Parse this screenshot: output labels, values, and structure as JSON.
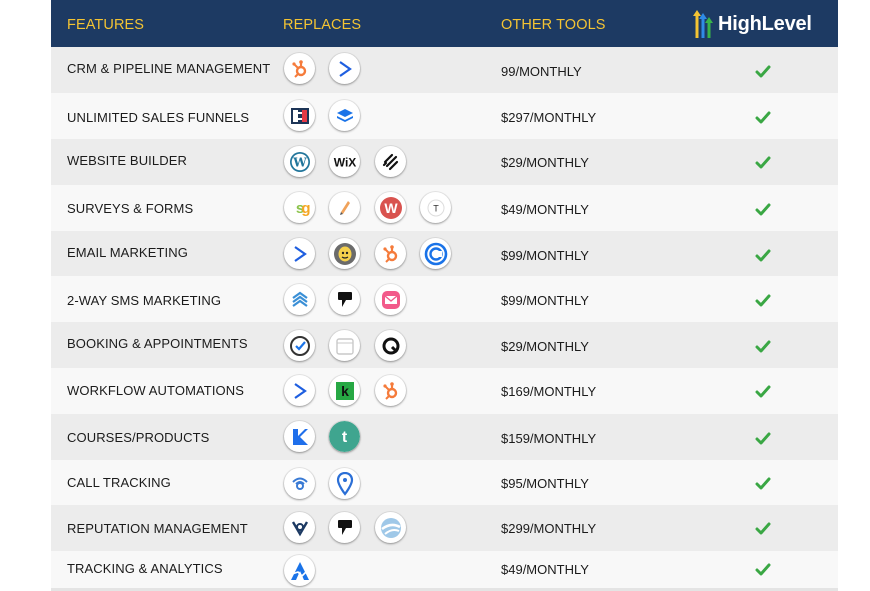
{
  "header": {
    "col_features": "FEATURES",
    "col_replaces": "REPLACES",
    "col_other_tools": "OTHER TOOLS",
    "brand": "HighLevel",
    "brand_icon": "highlevel-arrows-logo"
  },
  "colors": {
    "header_bg": "#1d3a63",
    "header_text": "#f4c433",
    "check": "#3aa744",
    "row_shaded": "#ececec",
    "row_light": "#f8f8f8"
  },
  "rows": [
    {
      "feature": "CRM & PIPELINE MANAGEMENT",
      "price": "99/MONTHLY",
      "icons": [
        "hubspot-icon",
        "activecampaign-icon"
      ]
    },
    {
      "feature": "UNLIMITED SALES FUNNELS",
      "price": "$297/MONTHLY",
      "icons": [
        "clickfunnels-icon",
        "leadpages-icon"
      ]
    },
    {
      "feature": "WEBSITE BUILDER",
      "price": "$29/MONTHLY",
      "icons": [
        "wordpress-icon",
        "wix-icon",
        "squarespace-icon"
      ]
    },
    {
      "feature": "SURVEYS & FORMS",
      "price": "$49/MONTHLY",
      "icons": [
        "surveygizmo-icon",
        "survey-pen-icon",
        "wufoo-icon",
        "typeform-icon"
      ]
    },
    {
      "feature": "EMAIL MARKETING",
      "price": "$99/MONTHLY",
      "icons": [
        "activecampaign-icon",
        "mailchimp-icon",
        "hubspot-icon",
        "constant-contact-icon"
      ]
    },
    {
      "feature": "2-WAY SMS MARKETING",
      "price": "$99/MONTHLY",
      "icons": [
        "layers-sms-icon",
        "podium-icon",
        "envelope-sms-icon"
      ]
    },
    {
      "feature": "BOOKING & APPOINTMENTS",
      "price": "$29/MONTHLY",
      "icons": [
        "calendly-icon",
        "calendar-icon",
        "acuity-icon"
      ]
    },
    {
      "feature": "WORKFLOW AUTOMATIONS",
      "price": "$169/MONTHLY",
      "icons": [
        "activecampaign-icon",
        "keap-icon",
        "hubspot-icon"
      ]
    },
    {
      "feature": "COURSES/PRODUCTS",
      "price": "$159/MONTHLY",
      "icons": [
        "kajabi-icon",
        "teachable-icon"
      ]
    },
    {
      "feature": "CALL TRACKING",
      "price": "$95/MONTHLY",
      "icons": [
        "callrail-icon",
        "location-pin-icon"
      ]
    },
    {
      "feature": "REPUTATION MANAGEMENT",
      "price": "$299/MONTHLY",
      "icons": [
        "birdeye-icon",
        "podium-icon",
        "reputation-icon"
      ]
    },
    {
      "feature": "TRACKING & ANALYTICS",
      "price": "$49/MONTHLY",
      "icons": [
        "analytics-icon"
      ]
    }
  ]
}
